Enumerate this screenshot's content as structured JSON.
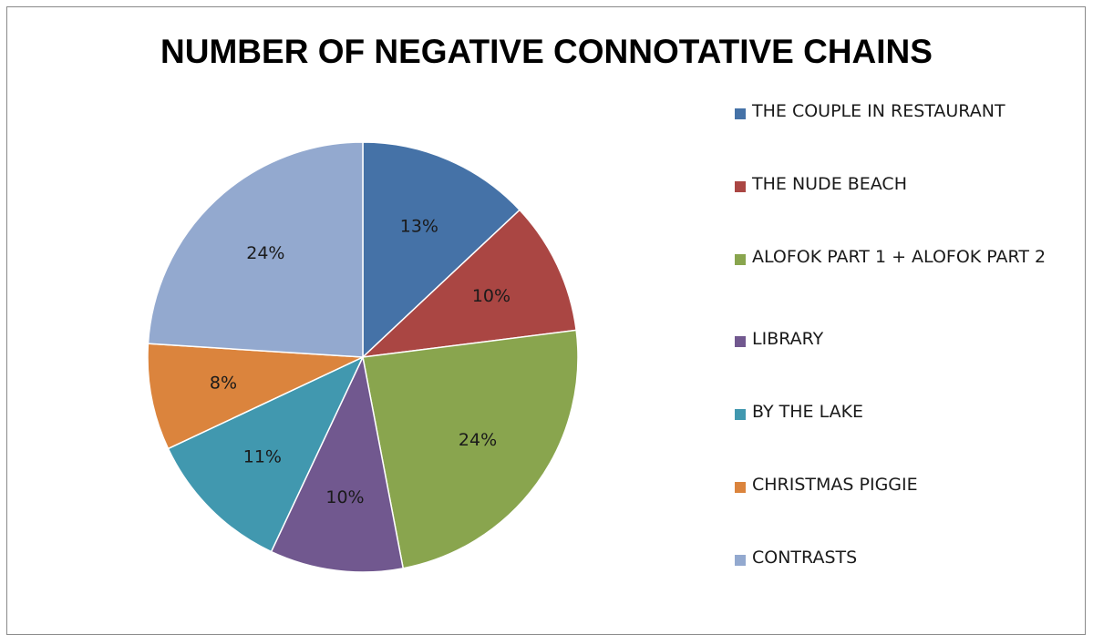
{
  "chart_data": {
    "type": "pie",
    "title": "NUMBER OF NEGATIVE CONNOTATIVE CHAINS",
    "categories": [
      "THE COUPLE IN RESTAURANT",
      "THE NUDE BEACH",
      "ALOFOK PART 1 + ALOFOK PART 2",
      "LIBRARY",
      "BY THE LAKE",
      "CHRISTMAS PIGGIE",
      "CONTRASTS"
    ],
    "values": [
      13,
      10,
      24,
      10,
      11,
      8,
      24
    ],
    "labels": [
      "13%",
      "10%",
      "24%",
      "10%",
      "11%",
      "8%",
      "24%"
    ],
    "colors": [
      "#4572A7",
      "#AA4643",
      "#89A54E",
      "#71588F",
      "#4198AF",
      "#DB843D",
      "#93A9CF"
    ],
    "legend_position": "right"
  }
}
